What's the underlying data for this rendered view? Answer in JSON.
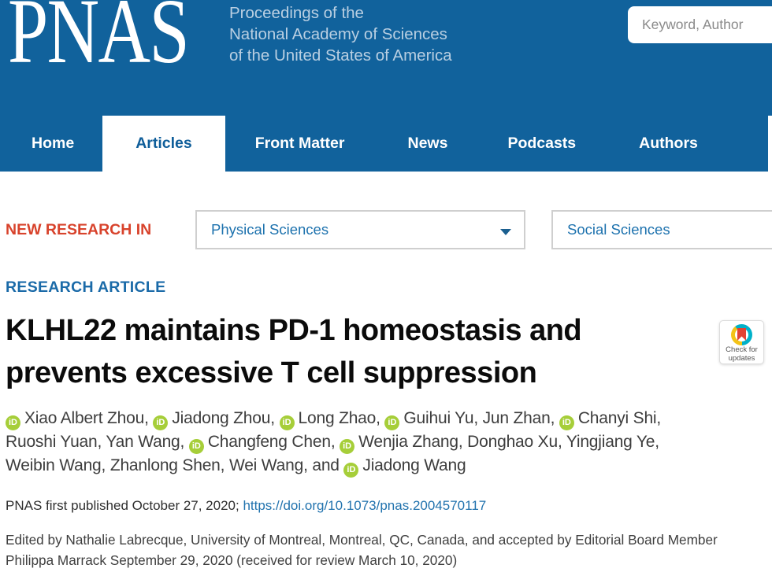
{
  "header": {
    "logo": "PNAS",
    "subtitle_lines": [
      "Proceedings of the",
      "National Academy of Sciences",
      "of the United States of America"
    ],
    "search": {
      "placeholder": "Keyword, Author"
    },
    "nav": [
      {
        "label": "Home",
        "active": false
      },
      {
        "label": "Articles",
        "active": true
      },
      {
        "label": "Front Matter",
        "active": false
      },
      {
        "label": "News",
        "active": false
      },
      {
        "label": "Podcasts",
        "active": false
      },
      {
        "label": "Authors",
        "active": false
      }
    ]
  },
  "research_bar": {
    "label": "NEW RESEARCH IN",
    "dropdowns": [
      {
        "value": "Physical Sciences"
      },
      {
        "value": "Social Sciences"
      }
    ]
  },
  "crossmark": {
    "line1": "Check for",
    "line2": "updates"
  },
  "article": {
    "kicker": "RESEARCH ARTICLE",
    "title_lines": [
      "KLHL22 maintains PD-1 homeostasis and",
      "prevents excessive T cell suppression"
    ],
    "orcid_glyph": "iD",
    "authors": [
      {
        "name": "Xiao Albert Zhou",
        "orcid": true
      },
      {
        "name": "Jiadong Zhou",
        "orcid": true
      },
      {
        "name": "Long Zhao",
        "orcid": true
      },
      {
        "name": "Guihui Yu",
        "orcid": true
      },
      {
        "name": "Jun Zhan",
        "orcid": false
      },
      {
        "name": "Chanyi Shi",
        "orcid": true,
        "break_after": true
      },
      {
        "name": "Ruoshi Yuan",
        "orcid": false
      },
      {
        "name": "Yan Wang",
        "orcid": false
      },
      {
        "name": "Changfeng Chen",
        "orcid": true
      },
      {
        "name": "Wenjia Zhang",
        "orcid": true
      },
      {
        "name": "Donghao Xu",
        "orcid": false
      },
      {
        "name": "Yingjiang Ye",
        "orcid": false,
        "break_after": true
      },
      {
        "name": "Weibin Wang",
        "orcid": false
      },
      {
        "name": "Zhanlong Shen",
        "orcid": false
      },
      {
        "name": "Wei Wang",
        "orcid": false
      },
      {
        "name": "Jiadong Wang",
        "orcid": true,
        "prefix": "and "
      }
    ],
    "published_text": "PNAS first published October 27, 2020; ",
    "doi": "https://doi.org/10.1073/pnas.2004570117",
    "edited": "Edited by Nathalie Labrecque, University of Montreal, Montreal, QC, Canada, and accepted by Editorial Board Member Philippa Marrack September 29, 2020 (received for review March 10, 2020)"
  },
  "colors": {
    "header_blue": "#11629c",
    "active_tab_text": "#0f5e9a",
    "new_research_red": "#d8432c",
    "kicker_blue": "#1a6aa8",
    "dropdown_text_blue": "#1d72ae",
    "link_blue": "#2273ae",
    "orcid_green": "#a6ce39",
    "crossmark_teal": "#00b1c9",
    "crossmark_yellow": "#f3c317",
    "crossmark_red": "#e14334"
  }
}
